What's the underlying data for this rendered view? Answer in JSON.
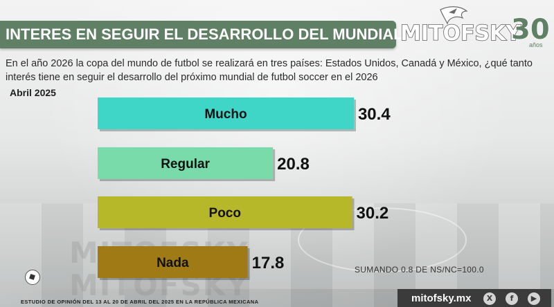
{
  "header": {
    "title": "INTERES EN SEGUIR EL DESARROLLO DEL MUNDIAL",
    "brand_name": "MITOFSKY",
    "brand_number": "30",
    "brand_sub": "años"
  },
  "question": "En el año 2026 la copa del mundo de futbol se realizará en tres países:  Estados Unidos, Canadá y México, ¿qué tanto interés tiene en seguir el desarrollo del próximo mundial de futbol soccer en el 2026",
  "date_label": "Abril 2025",
  "note": "SUMANDO 0.8 DE NS/NC=100.0",
  "footer": {
    "study": "ESTUDIO DE OPINIÓN DEL 13 AL 20 DE ABRIL DEL 2025 EN LA REPÚBLICA MEXICANA",
    "site": "mitofsky.mx",
    "social_icons": [
      "x-icon",
      "facebook-icon",
      "youtube-icon"
    ]
  },
  "watermark": [
    "MITOFSKY",
    "MITOFSKY"
  ],
  "colors": {
    "title_bar": "#5f8064",
    "mucho": "#3fd6c8",
    "regular": "#79dbaa",
    "poco": "#b7b72a",
    "nada": "#a07a14"
  },
  "chart_data": {
    "type": "bar",
    "orientation": "horizontal",
    "categories": [
      "Mucho",
      "Regular",
      "Poco",
      "Nada"
    ],
    "values": [
      30.4,
      20.8,
      30.2,
      17.8
    ],
    "value_labels": [
      "30.4",
      "20.8",
      "30.2",
      "17.8"
    ],
    "bar_colors": [
      "#3fd6c8",
      "#79dbaa",
      "#b7b72a",
      "#a07a14"
    ],
    "xlim": [
      0,
      32
    ],
    "grid": false
  }
}
